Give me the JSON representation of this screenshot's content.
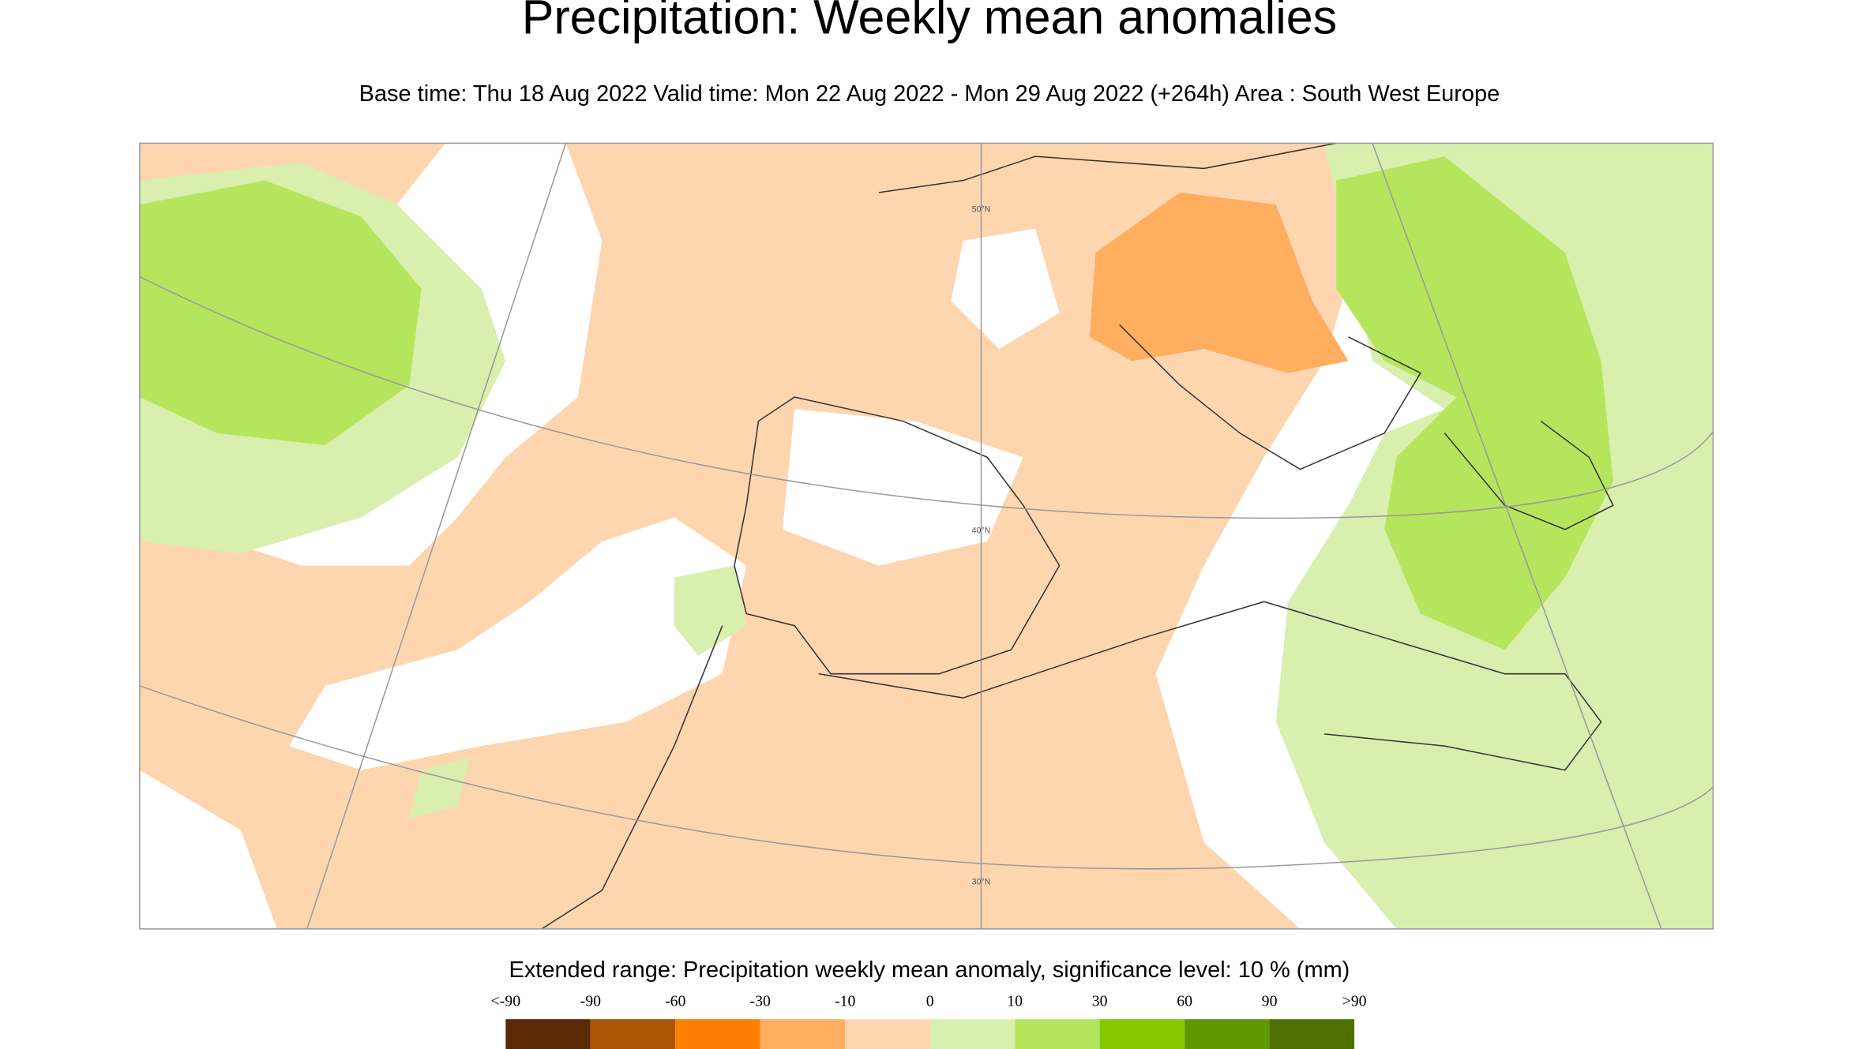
{
  "header": {
    "title": "Precipitation: Weekly mean anomalies",
    "subtitle": "Base time: Thu 18 Aug 2022 Valid time: Mon 22 Aug 2022 - Mon 29 Aug 2022 (+264h) Area : South West Europe"
  },
  "map": {
    "latitude_labels": [
      "50°N",
      "40°N",
      "30°N"
    ]
  },
  "legend": {
    "title": "Extended range: Precipitation weekly mean anomaly, significance level: 10 % (mm)",
    "labels": [
      "<-90",
      "-90",
      "-60",
      "-30",
      "-10",
      "0",
      "10",
      "30",
      "60",
      "90",
      ">90"
    ],
    "colors": [
      "#5b2a06",
      "#ad5605",
      "#ff8000",
      "#ffae60",
      "#fdd6b0",
      "#d9efae",
      "#b5e55c",
      "#87c900",
      "#629600",
      "#4f7000"
    ]
  }
}
